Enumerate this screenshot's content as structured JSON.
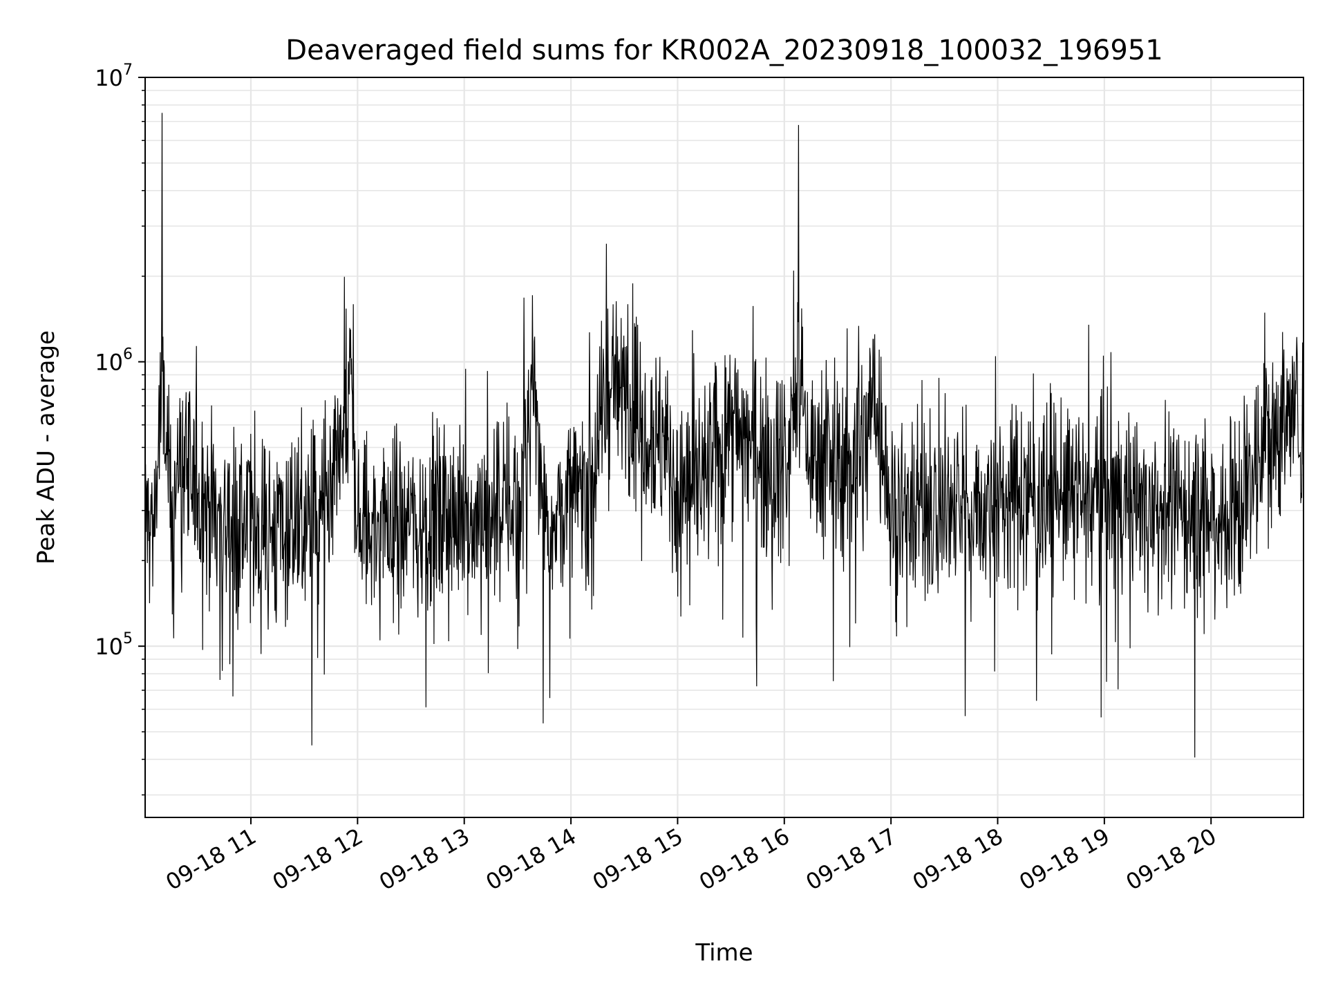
{
  "chart_data": {
    "type": "line",
    "title": "Deaveraged field sums for KR002A_20230918_100032_196951",
    "xlabel": "Time",
    "ylabel": "Peak ADU - average",
    "yscale": "log",
    "ylim": [
      25000,
      10000000
    ],
    "xlim": [
      "2023-09-18 10:00:32",
      "2023-09-18 20:52"
    ],
    "grid": true,
    "line_color": "#000000",
    "grid_color": "#e6e6e6",
    "x_ticks": [
      {
        "label": "09-18 11",
        "value": "2023-09-18 11:00"
      },
      {
        "label": "09-18 12",
        "value": "2023-09-18 12:00"
      },
      {
        "label": "09-18 13",
        "value": "2023-09-18 13:00"
      },
      {
        "label": "09-18 14",
        "value": "2023-09-18 14:00"
      },
      {
        "label": "09-18 15",
        "value": "2023-09-18 15:00"
      },
      {
        "label": "09-18 16",
        "value": "2023-09-18 16:00"
      },
      {
        "label": "09-18 17",
        "value": "2023-09-18 17:00"
      },
      {
        "label": "09-18 18",
        "value": "2023-09-18 18:00"
      },
      {
        "label": "09-18 19",
        "value": "2023-09-18 19:00"
      },
      {
        "label": "09-18 20",
        "value": "2023-09-18 20:00"
      }
    ],
    "y_ticks": [
      {
        "base": "10",
        "exp": "5",
        "value": 100000
      },
      {
        "base": "10",
        "exp": "6",
        "value": 1000000
      },
      {
        "base": "10",
        "exp": "7",
        "value": 10000000
      }
    ],
    "series": [
      {
        "x": [
          "2023-09-18 10:00",
          "2023-09-18 10:05",
          "2023-09-18 10:10",
          "2023-09-18 10:15",
          "2023-09-18 10:20",
          "2023-09-18 10:30",
          "2023-09-18 10:45",
          "2023-09-18 11:00",
          "2023-09-18 11:15",
          "2023-09-18 11:30",
          "2023-09-18 11:45",
          "2023-09-18 11:56",
          "2023-09-18 12:00",
          "2023-09-18 12:15",
          "2023-09-18 12:30",
          "2023-09-18 12:45",
          "2023-09-18 13:00",
          "2023-09-18 13:15",
          "2023-09-18 13:30",
          "2023-09-18 13:40",
          "2023-09-18 13:45",
          "2023-09-18 14:00",
          "2023-09-18 14:15",
          "2023-09-18 14:20",
          "2023-09-18 14:30",
          "2023-09-18 14:45",
          "2023-09-18 14:55",
          "2023-09-18 15:00",
          "2023-09-18 15:15",
          "2023-09-18 15:30",
          "2023-09-18 15:45",
          "2023-09-18 16:00",
          "2023-09-18 16:08",
          "2023-09-18 16:15",
          "2023-09-18 16:30",
          "2023-09-18 16:45",
          "2023-09-18 16:50",
          "2023-09-18 17:00",
          "2023-09-18 17:15",
          "2023-09-18 17:30",
          "2023-09-18 17:45",
          "2023-09-18 18:00",
          "2023-09-18 18:15",
          "2023-09-18 18:30",
          "2023-09-18 18:45",
          "2023-09-18 19:00",
          "2023-09-18 19:15",
          "2023-09-18 19:30",
          "2023-09-18 19:45",
          "2023-09-18 20:00",
          "2023-09-18 20:15",
          "2023-09-18 20:30",
          "2023-09-18 20:45",
          "2023-09-18 20:52"
        ],
        "values": [
          300000,
          250000,
          7500000,
          300000,
          450000,
          350000,
          280000,
          260000,
          250000,
          270000,
          280000,
          1300000,
          260000,
          270000,
          280000,
          270000,
          280000,
          300000,
          320000,
          1000000,
          290000,
          300000,
          500000,
          2600000,
          800000,
          600000,
          450000,
          350000,
          380000,
          600000,
          500000,
          450000,
          6800000,
          450000,
          420000,
          500000,
          1200000,
          310000,
          320000,
          310000,
          300000,
          320000,
          340000,
          350000,
          330000,
          340000,
          320000,
          310000,
          300000,
          290000,
          300000,
          550000,
          650000,
          600000
        ]
      }
    ]
  }
}
